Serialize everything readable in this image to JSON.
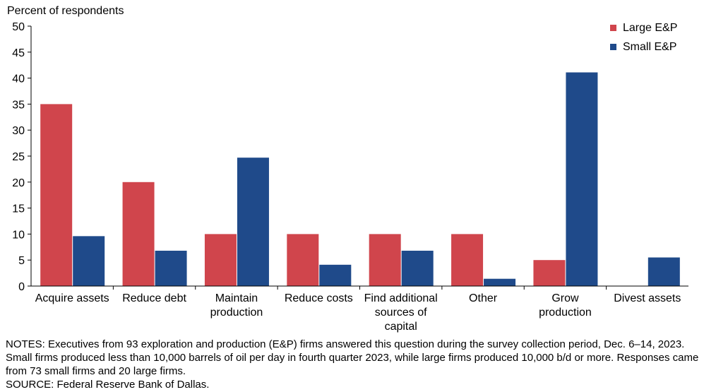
{
  "chart_data": {
    "type": "bar",
    "ylabel": "Percent of respondents",
    "ylim": [
      0,
      50
    ],
    "yticks": [
      0,
      5,
      10,
      15,
      20,
      25,
      30,
      35,
      40,
      45,
      50
    ],
    "categories": [
      [
        "Acquire assets"
      ],
      [
        "Reduce debt"
      ],
      [
        "Maintain",
        "production"
      ],
      [
        "Reduce costs"
      ],
      [
        "Find additional",
        "sources of",
        "capital"
      ],
      [
        "Other"
      ],
      [
        "Grow",
        "production"
      ],
      [
        "Divest assets"
      ]
    ],
    "series": [
      {
        "name": "Large E&P",
        "color": "#d0454c",
        "values": [
          35,
          20,
          10,
          10,
          10,
          10,
          5,
          0
        ]
      },
      {
        "name": "Small E&P",
        "color": "#1f4a8a",
        "values": [
          9.6,
          6.8,
          24.7,
          4.1,
          6.8,
          1.4,
          41.1,
          5.5
        ]
      }
    ],
    "legend_position": "top-right",
    "grid": false
  },
  "notes": {
    "line1": "NOTES: Executives from 93 exploration and production (E&P) firms answered this question during the survey collection period, Dec. 6–14, 2023. Small firms produced less than 10,000 barrels of oil per day in fourth quarter 2023, while large firms produced 10,000 b/d or more. Responses came from 73 small firms and 20 large firms.",
    "source": "SOURCE: Federal Reserve Bank of Dallas."
  }
}
